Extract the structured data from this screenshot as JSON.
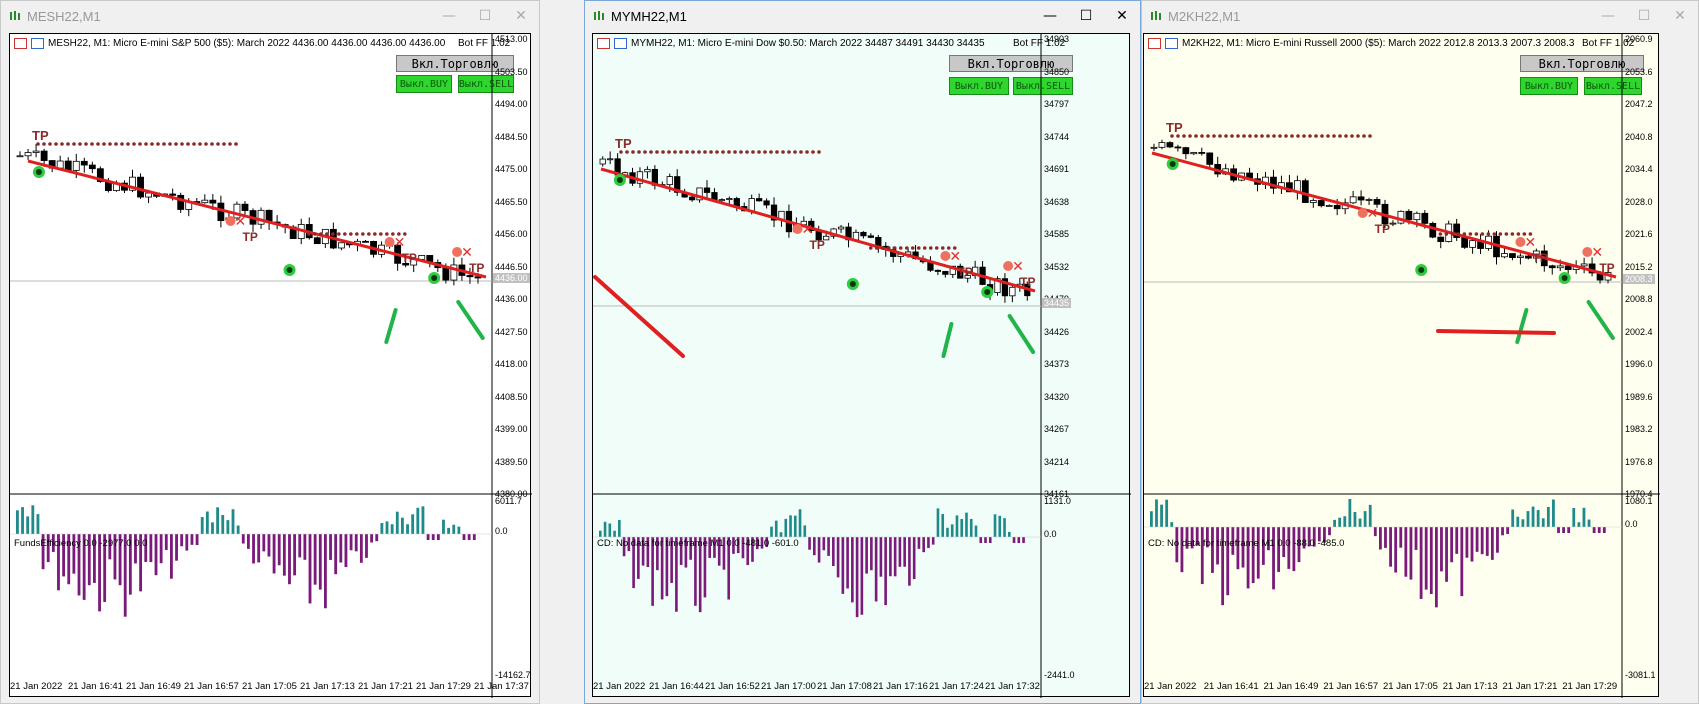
{
  "windows": [
    {
      "title": "MESH22,M1",
      "active": false,
      "bg": "#ffffff",
      "info": "MESH22, M1:  Micro E-mini S&P 500 ($5): March 2022  4436.00 4436.00 4436.00 4436.00",
      "bot": "Bot FF 1.02",
      "trade_btn": "Вкл.Торговлю",
      "buy_btn": "Выкл.BUY",
      "sell_btn": "Выкл.SELL",
      "price_scale": [
        "4513.00",
        "4503.50",
        "4494.00",
        "4484.50",
        "4475.00",
        "4465.50",
        "4456.00",
        "4446.50",
        "4436.00",
        "4427.50",
        "4418.00",
        "4408.50",
        "4399.00",
        "4389.50",
        "4380.00"
      ],
      "current_price": "4436.00",
      "indicator_label": "FundsEfficiency 0.0 -2977.0 0.0",
      "ind_scale": [
        "6011.7",
        "0.0",
        "-14162.7"
      ],
      "time_axis": [
        "21 Jan 2022",
        "21 Jan 16:41",
        "21 Jan 16:49",
        "21 Jan 16:57",
        "21 Jan 17:05",
        "21 Jan 17:13",
        "21 Jan 17:21",
        "21 Jan 17:29",
        "21 Jan 17:37"
      ]
    },
    {
      "title": "MYMH22,M1",
      "active": true,
      "bg": "#f0fdf8",
      "info": "MYMH22, M1:  Micro E-mini Dow $0.50: March 2022  34487 34491 34430 34435",
      "bot": "Bot FF 1.02",
      "trade_btn": "Вкл.Торговлю",
      "buy_btn": "Выкл.BUY",
      "sell_btn": "Выкл.SELL",
      "price_scale": [
        "34903",
        "34850",
        "34797",
        "34744",
        "34691",
        "34638",
        "34585",
        "34532",
        "34479",
        "34426",
        "34373",
        "34320",
        "34267",
        "34214",
        "34161"
      ],
      "current_price": "34435",
      "indicator_label": "CD: No data for timeframe M1 0.0 -481.0 -601.0",
      "ind_scale": [
        "1131.0",
        "0.0",
        "-2441.0"
      ],
      "time_axis": [
        "21 Jan 2022",
        "21 Jan 16:44",
        "21 Jan 16:52",
        "21 Jan 17:00",
        "21 Jan 17:08",
        "21 Jan 17:16",
        "21 Jan 17:24",
        "21 Jan 17:32"
      ]
    },
    {
      "title": "M2KH22,M1",
      "active": false,
      "bg": "#fffff0",
      "info": "M2KH22, M1:  Micro E-mini Russell 2000 ($5): March 2022  2012.8 2013.3 2007.3 2008.3",
      "bot": "Bot FF 1.02",
      "trade_btn": "Вкл.Торговлю",
      "buy_btn": "Выкл.BUY",
      "sell_btn": "Выкл.SELL",
      "price_scale": [
        "2060.9",
        "2053.6",
        "2047.2",
        "2040.8",
        "2034.4",
        "2028.0",
        "2021.6",
        "2015.2",
        "2008.8",
        "2002.4",
        "1996.0",
        "1989.6",
        "1983.2",
        "1976.8",
        "1970.4"
      ],
      "current_price": "2008.3",
      "indicator_label": "CD: No data for timeframe M1 0.0 -88.0 -485.0",
      "ind_scale": [
        "1080.1",
        "0.0",
        "-3081.1"
      ],
      "time_axis": [
        "21 Jan 2022",
        "21 Jan 16:41",
        "21 Jan 16:49",
        "21 Jan 16:57",
        "21 Jan 17:05",
        "21 Jan 17:13",
        "21 Jan 17:21",
        "21 Jan 17:29"
      ]
    }
  ],
  "tp_label": "TP",
  "colors": {
    "ma": "#e02020",
    "tp_dots": "#8b2a2a",
    "buy": "#2ecc40",
    "sell": "#e03030",
    "hist_pos": "#1f8a8a",
    "hist_neg": "#7a1a7a"
  }
}
